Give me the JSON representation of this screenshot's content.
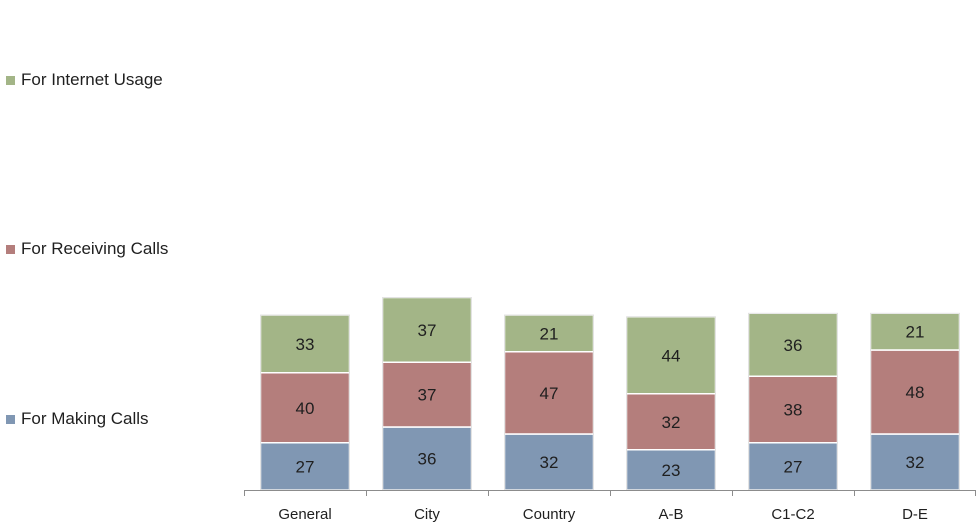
{
  "chart_data": {
    "type": "bar",
    "stacked": true,
    "categories": [
      "General",
      "City",
      "Country",
      "A-B",
      "C1-C2",
      "D-E"
    ],
    "series": [
      {
        "name": "For Making Calls",
        "color": "#8097b3",
        "values": [
          27,
          36,
          32,
          23,
          27,
          32
        ]
      },
      {
        "name": "For Receiving Calls",
        "color": "#b47e7c",
        "values": [
          40,
          37,
          47,
          32,
          38,
          48
        ]
      },
      {
        "name": "For Internet Usage",
        "color": "#a3b587",
        "values": [
          33,
          37,
          21,
          44,
          36,
          21
        ]
      }
    ],
    "legend_position": "left",
    "data_labels": true,
    "grid": false
  }
}
